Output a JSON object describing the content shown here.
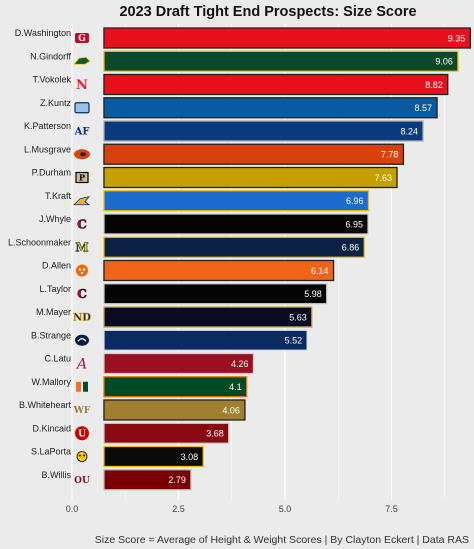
{
  "chart_data": {
    "type": "bar",
    "orientation": "horizontal",
    "title": "2023 Draft Tight End Prospects: Size Score",
    "caption": "Size Score = Average of Height & Weight Scores | By Clayton Eckert | Data RAS",
    "xlim": [
      0,
      10
    ],
    "xticks": [
      "0.0",
      "2.5",
      "5.0",
      "7.5"
    ],
    "xtick_values": [
      0,
      2.5,
      5,
      7.5
    ],
    "grid": true,
    "categories": [
      "D.Washington",
      "N.Gindorff",
      "T.Vokolek",
      "Z.Kuntz",
      "K.Patterson",
      "L.Musgrave",
      "P.Durham",
      "T.Kraft",
      "J.Whyle",
      "L.Schoonmaker",
      "D.Allen",
      "L.Taylor",
      "M.Mayer",
      "B.Strange",
      "C.Latu",
      "W.Mallory",
      "B.Whiteheart",
      "D.Kincaid",
      "S.LaPorta",
      "B.Willis"
    ],
    "values": [
      9.35,
      9.06,
      8.82,
      8.57,
      8.24,
      7.78,
      7.63,
      6.96,
      6.95,
      6.86,
      6.14,
      5.98,
      5.63,
      5.52,
      4.26,
      4.1,
      4.06,
      3.68,
      3.08,
      2.79
    ],
    "labels": [
      "9.35",
      "9.06",
      "8.82",
      "8.57",
      "8.24",
      "7.78",
      "7.63",
      "6.96",
      "6.95",
      "6.86",
      "6.14",
      "5.98",
      "5.63",
      "5.52",
      "4.26",
      "4.1",
      "4.06",
      "3.68",
      "3.08",
      "2.79"
    ],
    "fill_colors": [
      "#e8101c",
      "#0a4a2a",
      "#e8101c",
      "#0a5aa0",
      "#0a3a80",
      "#d8400c",
      "#c5a000",
      "#1c6cd0",
      "#050505",
      "#0c2244",
      "#f06418",
      "#050505",
      "#0a0a20",
      "#0a2a62",
      "#9a1020",
      "#004a24",
      "#a08030",
      "#8a0a12",
      "#0a0a0a",
      "#7a0000"
    ],
    "border_colors": [
      "#222222",
      "#f5c400",
      "#222222",
      "#222222",
      "#b0b0b0",
      "#222222",
      "#222222",
      "#f0c000",
      "#d0d0d0",
      "#f0c000",
      "#222222",
      "#d0d0d0",
      "#c8a850",
      "#e0e0e0",
      "#d0d0d0",
      "#f07800",
      "#222222",
      "#d0d0d0",
      "#f0c000",
      "#c0c0c0"
    ],
    "label_colors": [
      "#ffffff",
      "#ffffff",
      "#ffffff",
      "#ffffff",
      "#ffffff",
      "#ffffff",
      "#ffffff",
      "#ffffff",
      "#ffffff",
      "#ffffff",
      "#ffffff",
      "#ffffff",
      "#ffffff",
      "#ffffff",
      "#ffffff",
      "#ffffff",
      "#ffffff",
      "#ffffff",
      "#ffffff",
      "#ffffff"
    ],
    "logos": [
      "georgia-logo",
      "north-dakota-state-logo",
      "nebraska-logo",
      "old-dominion-logo",
      "air-force-logo",
      "oregon-state-logo",
      "purdue-logo",
      "south-dakota-state-logo",
      "cincinnati-logo",
      "michigan-logo",
      "clemson-logo",
      "cincinnati-logo",
      "notre-dame-logo",
      "penn-state-logo",
      "alabama-logo",
      "miami-logo",
      "wake-forest-logo",
      "utah-logo",
      "iowa-logo",
      "oklahoma-logo"
    ],
    "logo_colors": [
      "#ba0c2f",
      "#0a5a2a",
      "#e41c38",
      "#003366",
      "#003087",
      "#dc4405",
      "#000000",
      "#f2b600",
      "#e00122",
      "#00274c",
      "#f56600",
      "#e00122",
      "#0c2340",
      "#041e42",
      "#9e1b32",
      "#f47321",
      "#9e7e38",
      "#cc0000",
      "#ffcd00",
      "#841617"
    ]
  }
}
